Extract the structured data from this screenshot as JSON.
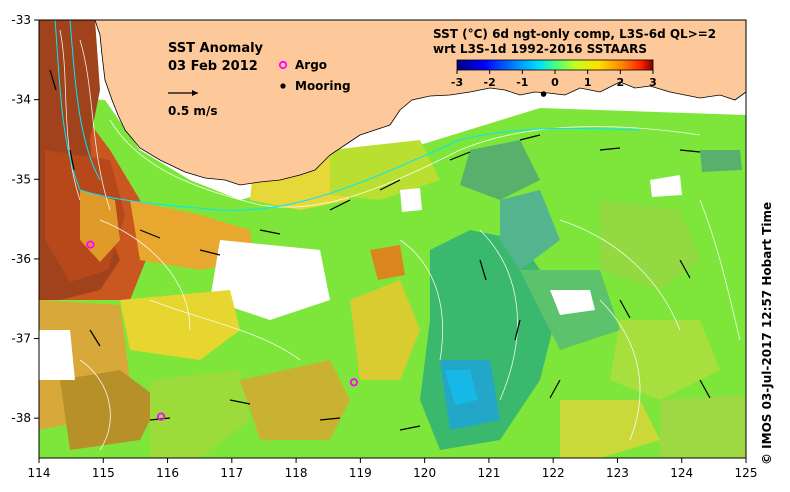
{
  "title": {
    "line1": "SST Anomaly",
    "line2": "03 Feb 2012"
  },
  "header": {
    "line1": "SST (°C) 6d ngt-only comp, L3S-6d QL>=2",
    "line2": "wrt L3S-1d 1992-2016 SSTAARS"
  },
  "colorbar": {
    "ticks": [
      "-3",
      "-2",
      "-1",
      "0",
      "1",
      "2",
      "3"
    ],
    "colors": [
      "#00007f",
      "#0000ff",
      "#0088ff",
      "#00e0ff",
      "#40ff80",
      "#c0ff20",
      "#ffe000",
      "#ff8800",
      "#ff2000",
      "#7f0000"
    ]
  },
  "legend": {
    "velocity_label": "0.5 m/s",
    "argo_label": "Argo",
    "mooring_label": "Mooring",
    "argo_color": "#ff00ff",
    "mooring_color": "#000000"
  },
  "axes": {
    "x_ticks": [
      "114",
      "115",
      "116",
      "117",
      "118",
      "119",
      "120",
      "121",
      "122",
      "123",
      "124",
      "125"
    ],
    "y_ticks": [
      "-33",
      "-34",
      "-35",
      "-36",
      "-37",
      "-38"
    ],
    "lon_range": [
      114,
      125
    ],
    "lat_range": [
      -38.5,
      -33
    ]
  },
  "markers": {
    "argo": [
      {
        "lon": 114.8,
        "lat": -35.82
      },
      {
        "lon": 115.9,
        "lat": -37.98
      },
      {
        "lon": 118.9,
        "lat": -37.55
      }
    ],
    "mooring": [
      {
        "lon": 121.85,
        "lat": -33.93
      }
    ]
  },
  "credit": "© IMOS 03-Jul-2017 12:57 Hobart Time",
  "colors": {
    "land": "#fdc99a",
    "no_data": "#ffffff"
  }
}
